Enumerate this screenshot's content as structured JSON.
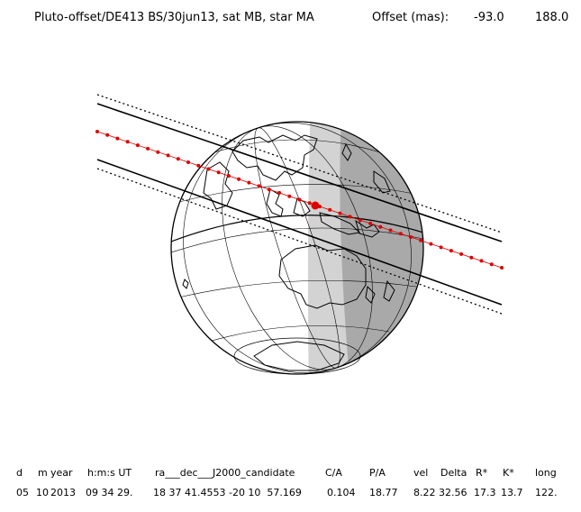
{
  "header": {
    "title": "Pluto-offset/DE413 BS/30jun13, sat MB, star MA",
    "offset_label": "Offset (mas):",
    "offset_x": "-93.0",
    "offset_y": "188.0"
  },
  "table": {
    "headers": [
      "d",
      "m",
      "year",
      "h:m:s UT",
      "ra___dec___J2000_candidate",
      "C/A",
      "P/A",
      "vel",
      "Delta",
      "R*",
      "K*",
      "long"
    ],
    "values": [
      "05",
      "10",
      "2013",
      "09 34 29.",
      "18 37 41.4553 -20 10  57.169",
      "0.104",
      "18.77",
      "8.22",
      "32.56",
      "17.3",
      "13.7",
      "122."
    ]
  },
  "colors": {
    "path": "#dd0000",
    "night": "#a9a9a9",
    "twilight": "#d3d3d3",
    "lines": "#000000"
  }
}
